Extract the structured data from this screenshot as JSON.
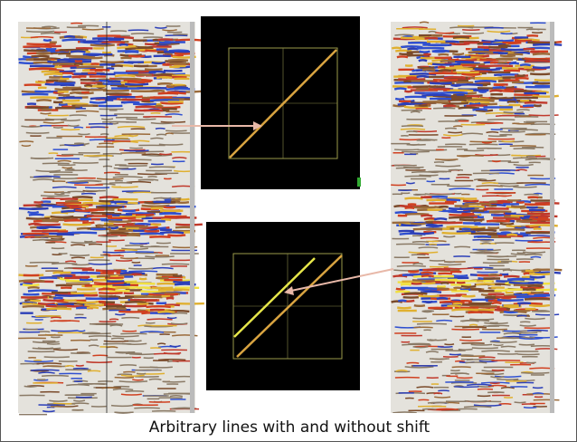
{
  "caption": "Arbitrary lines with and without shift"
}
